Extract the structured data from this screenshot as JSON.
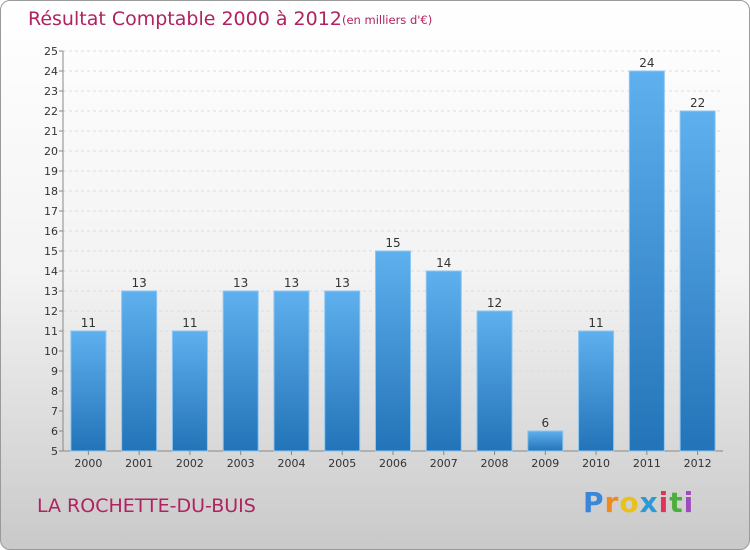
{
  "chart_data": {
    "type": "bar",
    "title": "Résultat Comptable 2000 à 2012",
    "subtitle": "(en milliers d'€)",
    "categories": [
      "2000",
      "2001",
      "2002",
      "2003",
      "2004",
      "2005",
      "2006",
      "2007",
      "2008",
      "2009",
      "2010",
      "2011",
      "2012"
    ],
    "values": [
      11,
      13,
      11,
      13,
      13,
      13,
      15,
      14,
      12,
      6,
      11,
      24,
      22
    ],
    "ylim": [
      5,
      25
    ],
    "ytick_step": 1,
    "grid": true,
    "bar_color": "#3b8fd6",
    "title_color": "#b02260"
  },
  "footer": {
    "commune": "LA ROCHETTE-DU-BUIS",
    "brand_letters": [
      "P",
      "r",
      "o",
      "x",
      "i",
      "t",
      "i"
    ],
    "brand_colors": [
      "#3a86d8",
      "#f08a1c",
      "#e8c21a",
      "#2a9ad8",
      "#e2325a",
      "#4cae3c",
      "#a04ac2"
    ]
  }
}
